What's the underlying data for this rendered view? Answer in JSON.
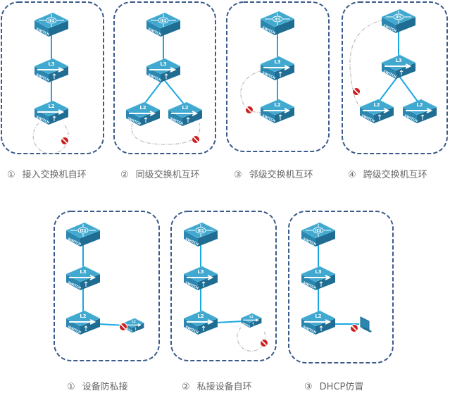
{
  "colors": {
    "frame": "#3a5a8a",
    "link": "#1aa8e0",
    "loop": "#bbbbbb",
    "switch_top": "#41a9cf",
    "switch_left": "#2b86b0",
    "switch_right": "#1f6d93",
    "block": "#cc1f1f"
  },
  "device_labels": {
    "core": "IES",
    "l3": "L3",
    "l2": "L2",
    "face": "SWITCH"
  },
  "top_row": [
    {
      "num": "①",
      "caption": "接入交换机自环"
    },
    {
      "num": "②",
      "caption": "同级交换机互环"
    },
    {
      "num": "③",
      "caption": "邻级交换机互环"
    },
    {
      "num": "④",
      "caption": "跨级交换机互环"
    }
  ],
  "bottom_row": [
    {
      "num": "①",
      "caption": "设备防私接"
    },
    {
      "num": "②",
      "caption": "私接设备自环"
    },
    {
      "num": "③",
      "caption": "DHCP仿冒"
    }
  ]
}
